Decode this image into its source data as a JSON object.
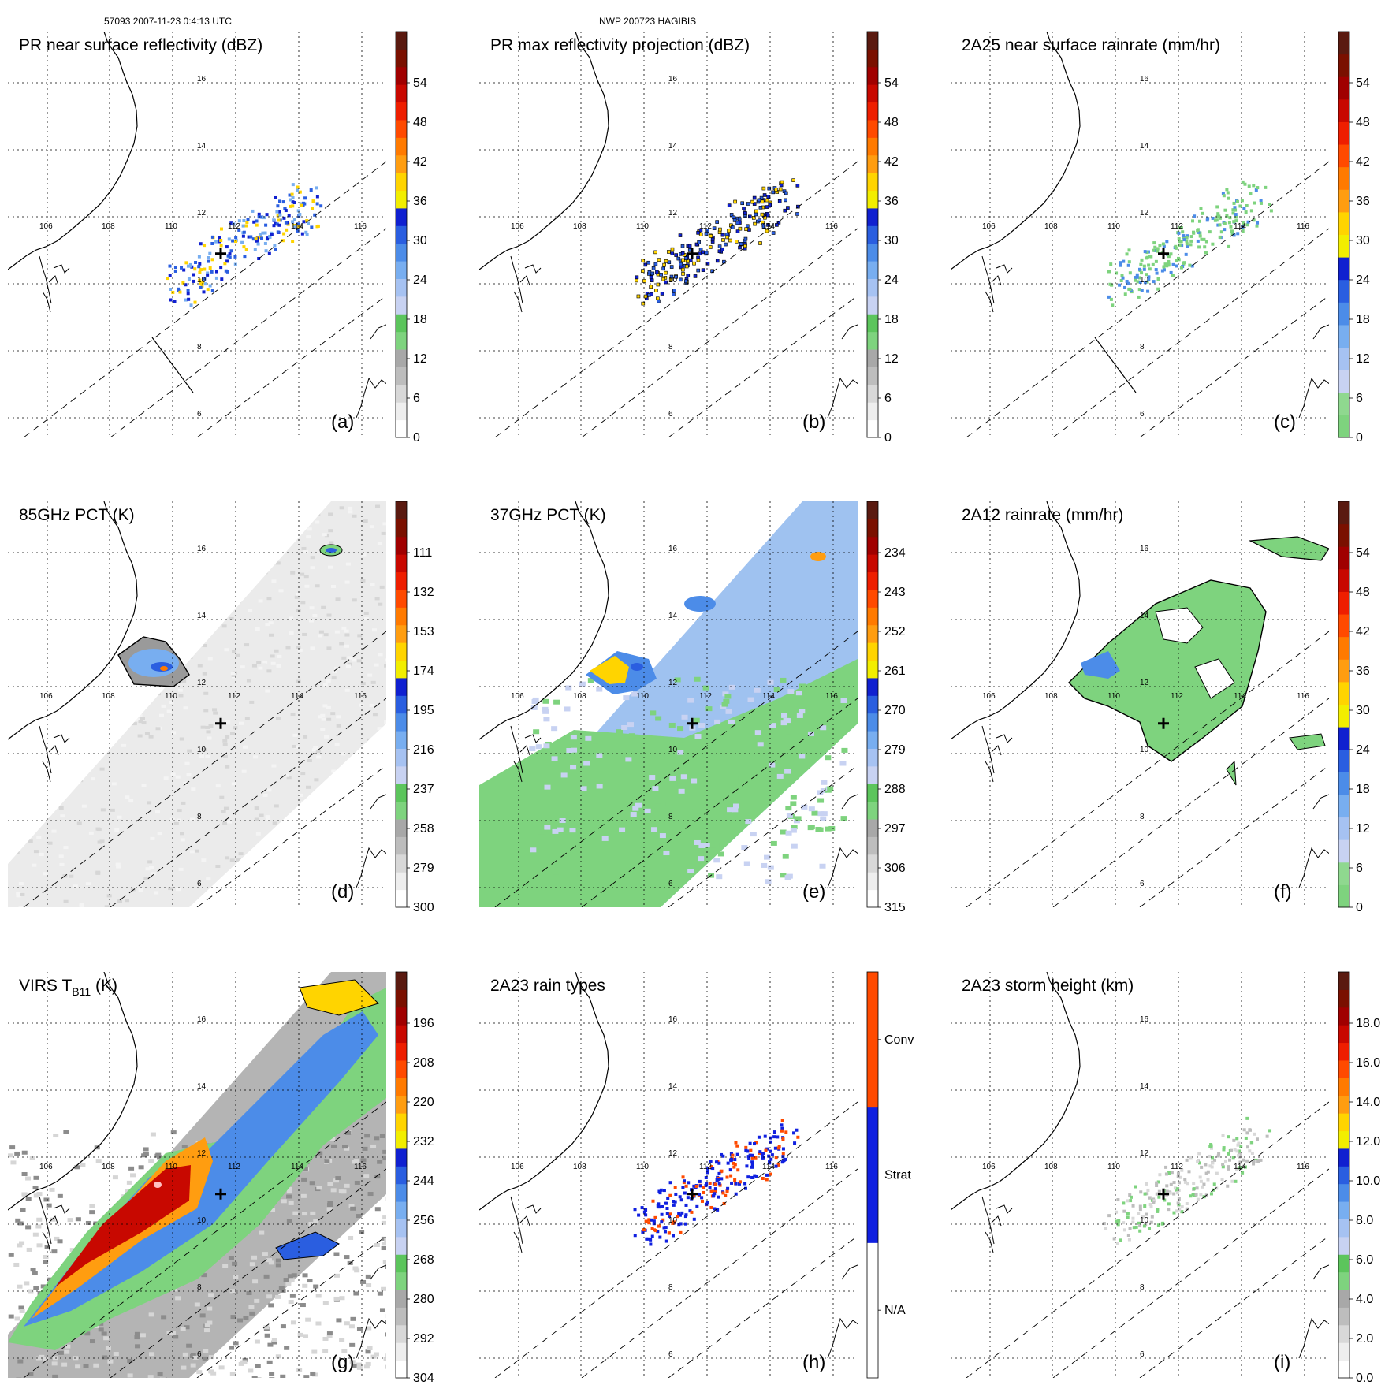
{
  "header": {
    "orbit_time": "57093 2007-11-23 0:4:13 UTC",
    "storm": "NWP 200723 HAGIBIS"
  },
  "chart_data": [
    {
      "type": "heatmap",
      "panel": "a",
      "title": "PR near surface reflectivity (dBZ)",
      "label": "(a)",
      "colorbar_ticks": [
        "0",
        "6",
        "12",
        "18",
        "24",
        "30",
        "36",
        "42",
        "48",
        "54"
      ],
      "lon_labels": [
        "106",
        "108",
        "110",
        "112",
        "114",
        "116"
      ],
      "lat_labels": [
        "6",
        "8",
        "10",
        "12",
        "14",
        "16"
      ],
      "colorbar_colors": [
        "#ffffff",
        "#eeeeee",
        "#d8d8d8",
        "#bdbdbd",
        "#a8a8a8",
        "#7ed37e",
        "#5cc55c",
        "#c8d2f2",
        "#a6c2f2",
        "#78aef0",
        "#4c8ce8",
        "#2a5ee0",
        "#1020d0",
        "#f2ee00",
        "#ffd400",
        "#ff9d10",
        "#ff7a00",
        "#ff4a00",
        "#ee1e00",
        "#c80800",
        "#a00000",
        "#7a1000",
        "#5a1a10"
      ],
      "render": "scatter"
    },
    {
      "type": "heatmap",
      "panel": "b",
      "title": "PR max reflectivity projection (dBZ)",
      "label": "(b)",
      "colorbar_ticks": [
        "0",
        "6",
        "12",
        "18",
        "24",
        "30",
        "36",
        "42",
        "48",
        "54"
      ],
      "lon_labels": [
        "106",
        "108",
        "110",
        "112",
        "114",
        "116"
      ],
      "lat_labels": [
        "6",
        "8",
        "10",
        "12",
        "14",
        "16"
      ],
      "colorbar_colors": [
        "#ffffff",
        "#eeeeee",
        "#d8d8d8",
        "#bdbdbd",
        "#a8a8a8",
        "#7ed37e",
        "#5cc55c",
        "#c8d2f2",
        "#a6c2f2",
        "#78aef0",
        "#4c8ce8",
        "#2a5ee0",
        "#1020d0",
        "#f2ee00",
        "#ffd400",
        "#ff9d10",
        "#ff7a00",
        "#ff4a00",
        "#ee1e00",
        "#c80800",
        "#a00000",
        "#7a1000",
        "#5a1a10"
      ],
      "render": "contour"
    },
    {
      "type": "heatmap",
      "panel": "c",
      "title": "2A25 near surface rainrate (mm/hr)",
      "label": "(c)",
      "colorbar_ticks": [
        "0",
        "6",
        "12",
        "18",
        "24",
        "30",
        "36",
        "42",
        "48",
        "54"
      ],
      "lon_labels": [
        "106",
        "108",
        "110",
        "112",
        "114",
        "116"
      ],
      "lat_labels": [
        "6",
        "8",
        "10",
        "12",
        "14",
        "16"
      ],
      "colorbar_colors": [
        "#7ed37e",
        "#8fd88f",
        "#c8d2f2",
        "#a6c2f2",
        "#78aef0",
        "#4c8ce8",
        "#2a5ee0",
        "#1020d0",
        "#f2ee00",
        "#ffd400",
        "#ff9d10",
        "#ff7a00",
        "#ff4a00",
        "#ee1e00",
        "#c80800",
        "#a00000",
        "#7a1000",
        "#5a1a10"
      ],
      "render": "green"
    },
    {
      "type": "heatmap",
      "panel": "d",
      "title": "85GHz PCT (K)",
      "label": "(d)",
      "colorbar_ticks": [
        "300",
        "279",
        "258",
        "237",
        "216",
        "195",
        "174",
        "153",
        "132",
        "111"
      ],
      "lon_labels": [
        "106",
        "108",
        "110",
        "112",
        "114",
        "116"
      ],
      "lat_labels": [
        "6",
        "8",
        "10",
        "12",
        "14",
        "16"
      ],
      "colorbar_colors": [
        "#ffffff",
        "#eeeeee",
        "#d8d8d8",
        "#bdbdbd",
        "#a8a8a8",
        "#7ed37e",
        "#5cc55c",
        "#c8d2f2",
        "#a6c2f2",
        "#78aef0",
        "#4c8ce8",
        "#2a5ee0",
        "#1020d0",
        "#f2ee00",
        "#ffd400",
        "#ff9d10",
        "#ff7a00",
        "#ff4a00",
        "#ee1e00",
        "#c80800",
        "#a00000",
        "#7a1000",
        "#5a1a10"
      ],
      "render": "pct85"
    },
    {
      "type": "heatmap",
      "panel": "e",
      "title": "37GHz PCT (K)",
      "label": "(e)",
      "colorbar_ticks": [
        "315",
        "306",
        "297",
        "288",
        "279",
        "270",
        "261",
        "252",
        "243",
        "234"
      ],
      "lon_labels": [
        "106",
        "108",
        "110",
        "112",
        "114",
        "116"
      ],
      "lat_labels": [
        "6",
        "8",
        "10",
        "12",
        "14",
        "16"
      ],
      "colorbar_colors": [
        "#ffffff",
        "#eeeeee",
        "#d8d8d8",
        "#bdbdbd",
        "#a8a8a8",
        "#7ed37e",
        "#5cc55c",
        "#c8d2f2",
        "#a6c2f2",
        "#78aef0",
        "#4c8ce8",
        "#2a5ee0",
        "#1020d0",
        "#f2ee00",
        "#ffd400",
        "#ff9d10",
        "#ff7a00",
        "#ff4a00",
        "#ee1e00",
        "#c80800",
        "#a00000",
        "#7a1000",
        "#5a1a10"
      ],
      "render": "pct37"
    },
    {
      "type": "heatmap",
      "panel": "f",
      "title": "2A12 rainrate (mm/hr)",
      "label": "(f)",
      "colorbar_ticks": [
        "0",
        "6",
        "12",
        "18",
        "24",
        "30",
        "36",
        "42",
        "48",
        "54"
      ],
      "lon_labels": [
        "106",
        "108",
        "110",
        "112",
        "114",
        "116"
      ],
      "lat_labels": [
        "6",
        "8",
        "10",
        "12",
        "14",
        "16"
      ],
      "colorbar_colors": [
        "#7ed37e",
        "#8fd88f",
        "#c8d2f2",
        "#a6c2f2",
        "#78aef0",
        "#4c8ce8",
        "#2a5ee0",
        "#1020d0",
        "#f2ee00",
        "#ffd400",
        "#ff9d10",
        "#ff7a00",
        "#ff4a00",
        "#ee1e00",
        "#c80800",
        "#a00000",
        "#7a1000",
        "#5a1a10"
      ],
      "render": "rain12"
    },
    {
      "type": "heatmap",
      "panel": "g",
      "title_main": "VIRS T",
      "title_sub": "B11",
      "title_unit": " (K)",
      "label": "(g)",
      "colorbar_ticks": [
        "304",
        "292",
        "280",
        "268",
        "256",
        "244",
        "232",
        "220",
        "208",
        "196"
      ],
      "lon_labels": [
        "106",
        "108",
        "110",
        "112",
        "114",
        "116"
      ],
      "lat_labels": [
        "6",
        "8",
        "10",
        "12",
        "14",
        "16"
      ],
      "colorbar_colors": [
        "#ffffff",
        "#eeeeee",
        "#d8d8d8",
        "#bdbdbd",
        "#a8a8a8",
        "#7ed37e",
        "#5cc55c",
        "#c8d2f2",
        "#a6c2f2",
        "#78aef0",
        "#4c8ce8",
        "#2a5ee0",
        "#1020d0",
        "#f2ee00",
        "#ffd400",
        "#ff9d10",
        "#ff7a00",
        "#ff4a00",
        "#ee1e00",
        "#c80800",
        "#a00000",
        "#7a1000",
        "#5a1a10"
      ],
      "render": "virs"
    },
    {
      "type": "heatmap",
      "panel": "h",
      "title": "2A23 rain types",
      "label": "(h)",
      "colorbar_ticks": [
        "N/A",
        "Strat",
        "Conv"
      ],
      "lon_labels": [
        "106",
        "108",
        "110",
        "112",
        "114",
        "116"
      ],
      "lat_labels": [
        "6",
        "8",
        "10",
        "12",
        "14",
        "16"
      ],
      "colorbar_colors": [
        "#ffffff",
        "#1020e0",
        "#ff4a00"
      ],
      "render": "types"
    },
    {
      "type": "heatmap",
      "panel": "i",
      "title": "2A23 storm height (km)",
      "label": "(i)",
      "colorbar_ticks": [
        "0.0",
        "2.0",
        "4.0",
        "6.0",
        "8.0",
        "10.0",
        "12.0",
        "14.0",
        "16.0",
        "18.0"
      ],
      "lon_labels": [
        "106",
        "108",
        "110",
        "112",
        "114",
        "116"
      ],
      "lat_labels": [
        "6",
        "8",
        "10",
        "12",
        "14",
        "16"
      ],
      "colorbar_colors": [
        "#ffffff",
        "#eeeeee",
        "#d8d8d8",
        "#bdbdbd",
        "#a8a8a8",
        "#7ed37e",
        "#5cc55c",
        "#c8d2f2",
        "#a6c2f2",
        "#78aef0",
        "#4c8ce8",
        "#2a5ee0",
        "#1020d0",
        "#f2ee00",
        "#ffd400",
        "#ff9d10",
        "#ff7a00",
        "#ff4a00",
        "#ee1e00",
        "#c80800",
        "#a00000",
        "#7a1000",
        "#5a1a10"
      ],
      "render": "height"
    }
  ]
}
